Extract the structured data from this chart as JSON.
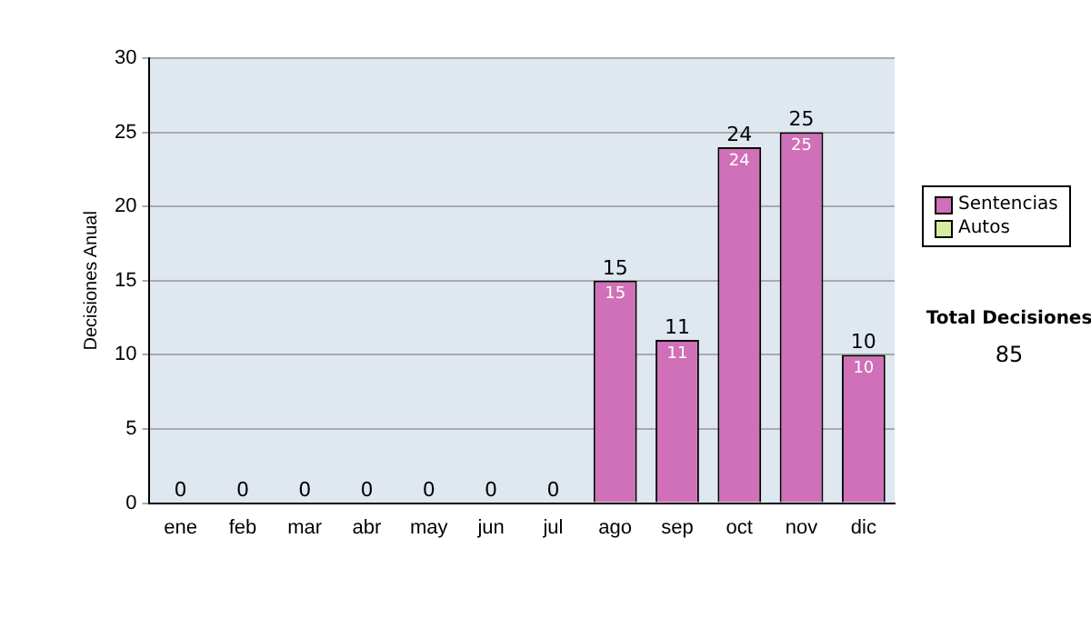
{
  "chart_data": {
    "type": "bar",
    "ylabel": "Decisiones Anual",
    "categories": [
      "ene",
      "feb",
      "mar",
      "abr",
      "may",
      "jun",
      "jul",
      "ago",
      "sep",
      "oct",
      "nov",
      "dic"
    ],
    "stacked": true,
    "series": [
      {
        "name": "Sentencias",
        "color": "#d070b8",
        "values": [
          0,
          0,
          0,
          0,
          0,
          0,
          0,
          15,
          11,
          24,
          25,
          10
        ],
        "value_labels": [
          null,
          null,
          null,
          null,
          null,
          null,
          null,
          "15",
          "11",
          "24",
          "25",
          "10"
        ]
      },
      {
        "name": "Autos",
        "color": "#d8eca0",
        "values": [
          0,
          0,
          0,
          0,
          0,
          0,
          0,
          0,
          0,
          0,
          0,
          0
        ]
      }
    ],
    "totals": [
      "0",
      "0",
      "0",
      "0",
      "0",
      "0",
      "0",
      "15",
      "11",
      "24",
      "25",
      "10"
    ],
    "ylim": [
      0,
      30
    ],
    "yticks": [
      0,
      5,
      10,
      15,
      20,
      25,
      30
    ],
    "grid": "y",
    "legend": "right",
    "annotations": [
      "Total Decisiones",
      "85"
    ]
  }
}
